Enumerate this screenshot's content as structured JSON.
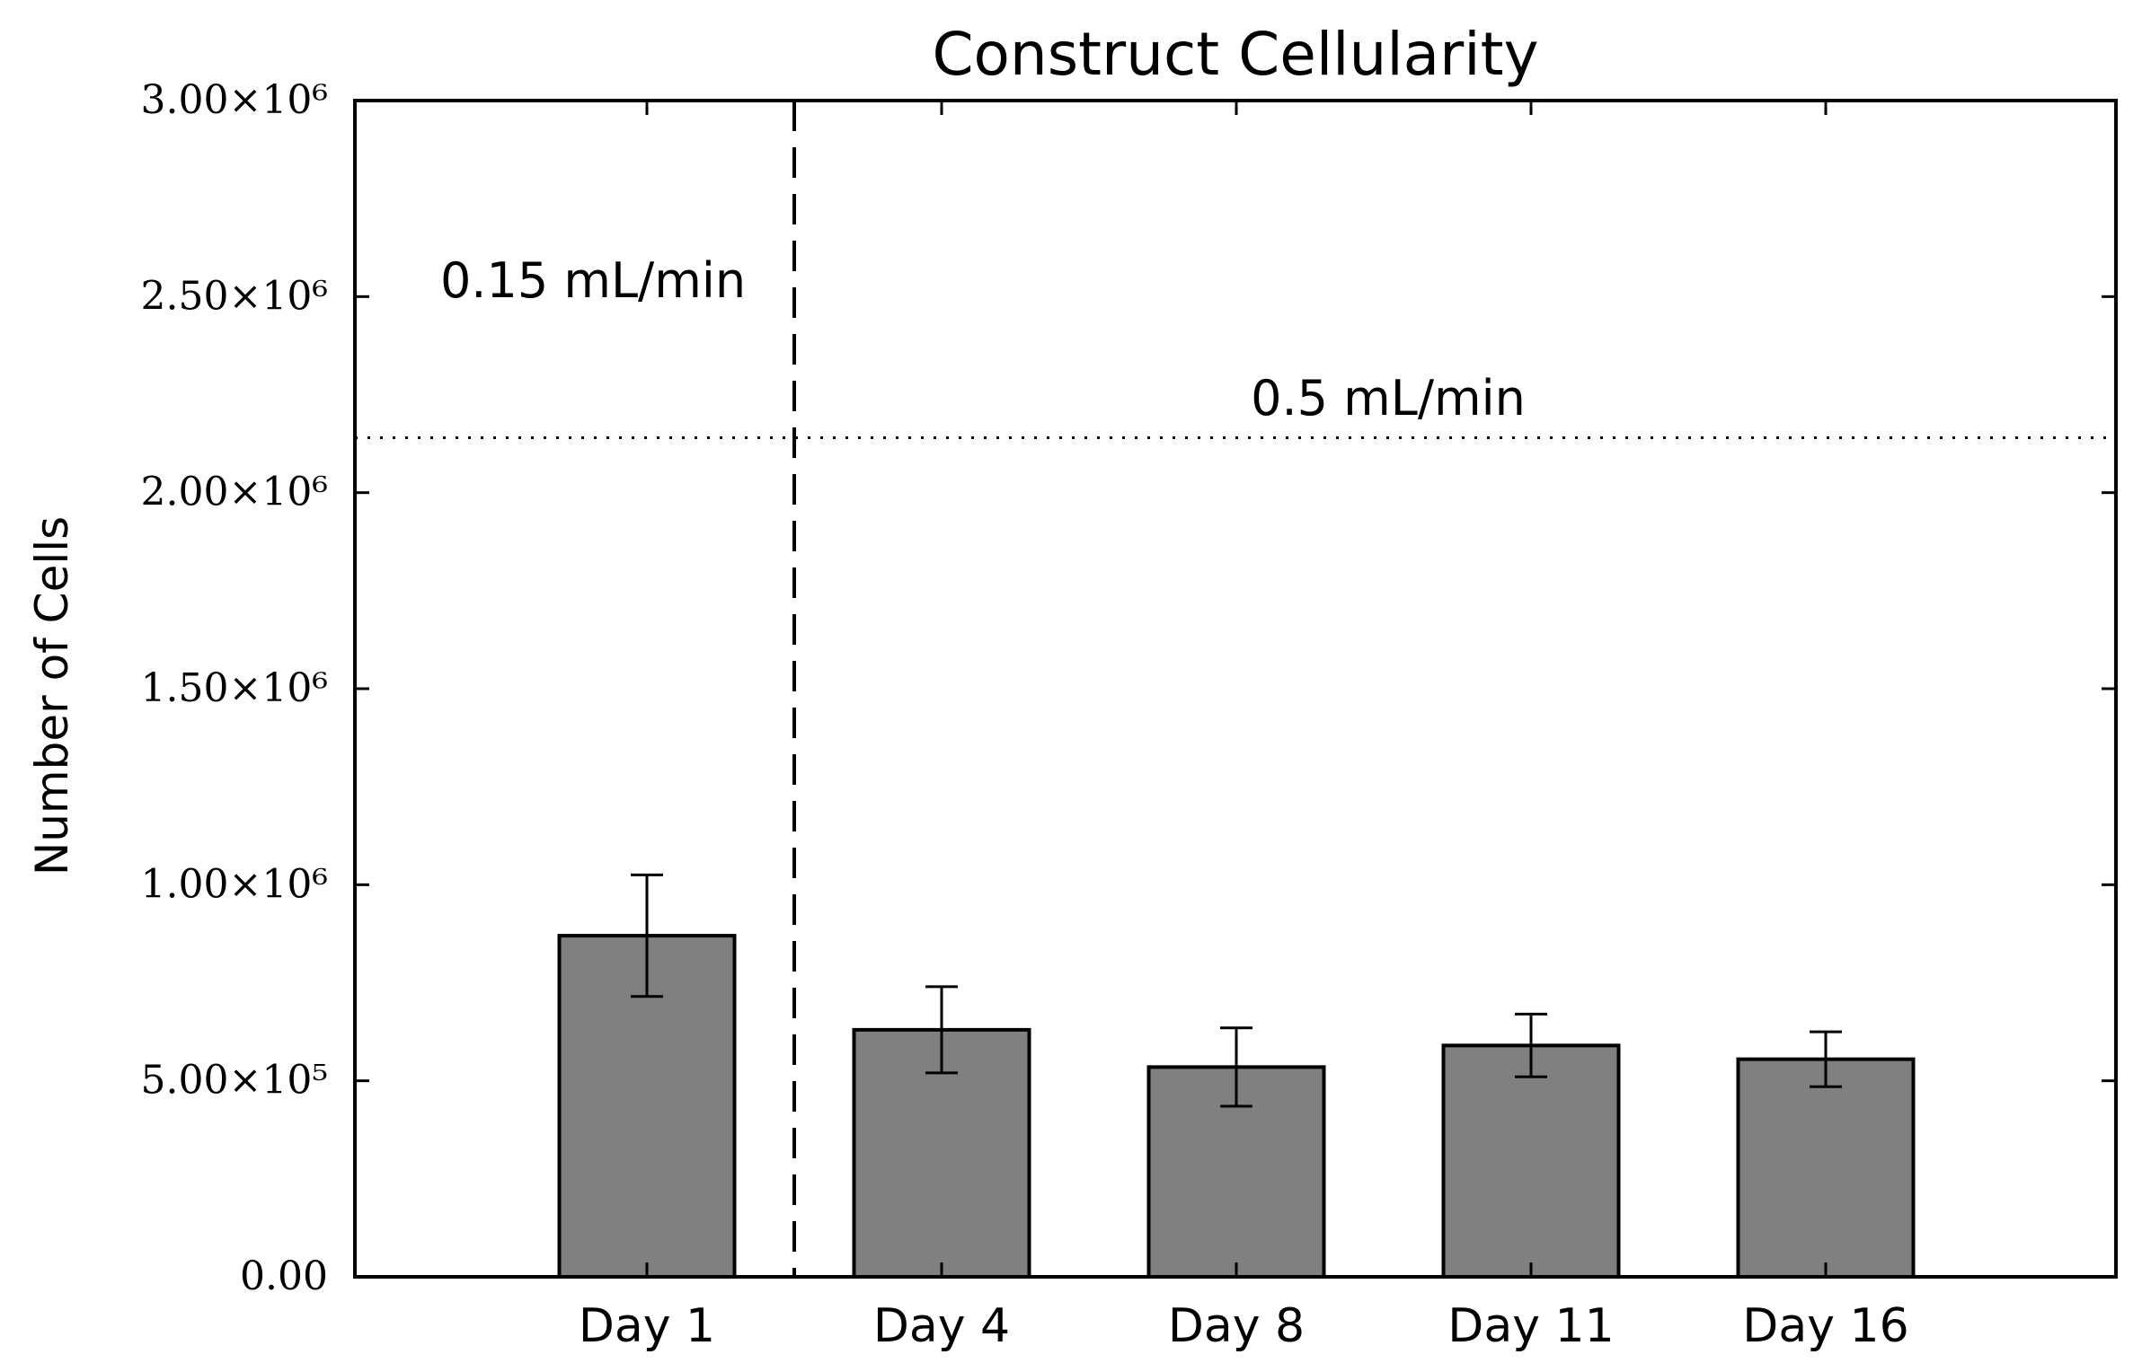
{
  "chart_data": {
    "type": "bar",
    "title": "Construct Cellularity",
    "xlabel": "",
    "ylabel": "Number of Cells",
    "ylim": [
      0,
      3000000
    ],
    "yticks": [
      {
        "value": 0,
        "label": "0.00"
      },
      {
        "value": 500000,
        "label": "5.00×10⁵"
      },
      {
        "value": 1000000,
        "label": "1.00×10⁶"
      },
      {
        "value": 1500000,
        "label": "1.50×10⁶"
      },
      {
        "value": 2000000,
        "label": "2.00×10⁶"
      },
      {
        "value": 2500000,
        "label": "2.50×10⁶"
      },
      {
        "value": 3000000,
        "label": "3.00×10⁶"
      }
    ],
    "categories": [
      "Day 1",
      "Day 4",
      "Day 8",
      "Day 11",
      "Day 16"
    ],
    "values": [
      870000,
      630000,
      535000,
      590000,
      555000
    ],
    "errors": [
      155000,
      110000,
      100000,
      80000,
      70000
    ],
    "bar_color": "#808080",
    "grid": false,
    "annotations": [
      {
        "text": "0.15 mL/min",
        "kind": "label"
      },
      {
        "text": "0.5 mL/min",
        "kind": "label"
      }
    ],
    "reference_lines": [
      {
        "orientation": "horizontal",
        "value": 2140000,
        "style": "dotted"
      },
      {
        "orientation": "vertical",
        "between": [
          "Day 1",
          "Day 4"
        ],
        "style": "dashed"
      }
    ]
  }
}
